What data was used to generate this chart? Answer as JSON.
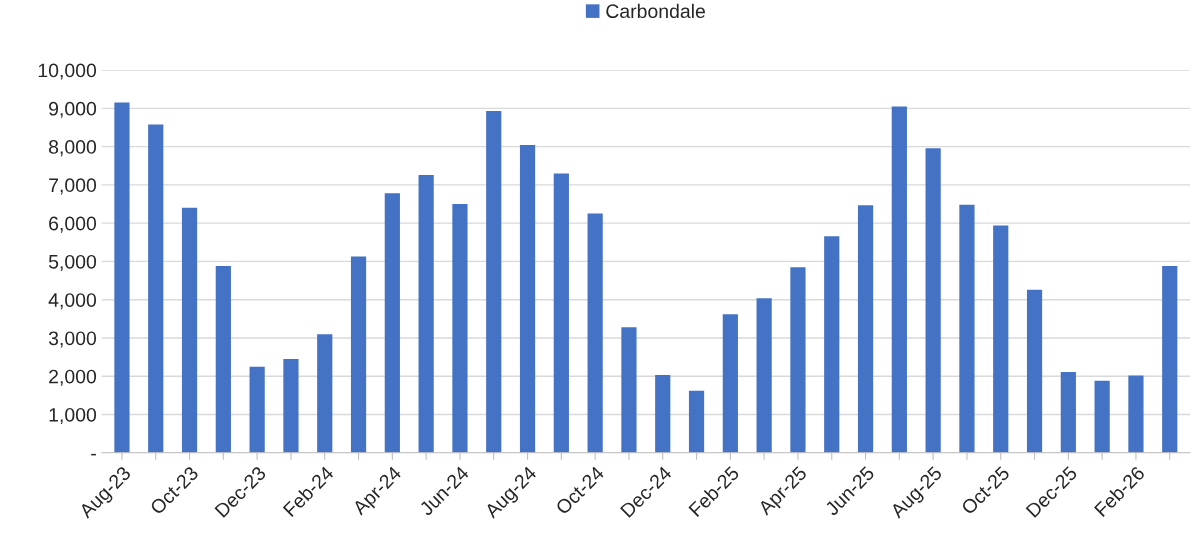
{
  "chart_data": {
    "type": "bar",
    "categories": [
      "Aug-23",
      null,
      "Oct-23",
      null,
      "Dec-23",
      null,
      "Feb-24",
      null,
      "Apr-24",
      null,
      "Jun-24",
      null,
      "Aug-24",
      null,
      "Oct-24",
      null,
      "Dec-24",
      null,
      "Feb-25",
      null,
      "Apr-25",
      null,
      "Jun-25",
      null,
      "Aug-25",
      null,
      "Oct-25",
      null,
      "Dec-25",
      null,
      "Feb-26",
      null
    ],
    "series": [
      {
        "name": "Carbondale",
        "color": "#4472c4",
        "values": [
          9150,
          8580,
          6400,
          4880,
          2250,
          2450,
          3100,
          5130,
          6780,
          7260,
          6500,
          8930,
          8040,
          7300,
          6250,
          3280,
          2030,
          1620,
          3620,
          4040,
          4850,
          5660,
          6470,
          9050,
          7960,
          6480,
          5940,
          4260,
          2110,
          1880,
          2020,
          4880
        ]
      }
    ],
    "ylim": [
      0,
      10000
    ],
    "yticks": [
      {
        "value": 0,
        "label": "-"
      },
      {
        "value": 1000,
        "label": "1,000"
      },
      {
        "value": 2000,
        "label": "2,000"
      },
      {
        "value": 3000,
        "label": "3,000"
      },
      {
        "value": 4000,
        "label": "4,000"
      },
      {
        "value": 5000,
        "label": "5,000"
      },
      {
        "value": 6000,
        "label": "6,000"
      },
      {
        "value": 7000,
        "label": "7,000"
      },
      {
        "value": 8000,
        "label": "8,000"
      },
      {
        "value": 9000,
        "label": "9,000"
      },
      {
        "value": 10000,
        "label": "10,000"
      }
    ],
    "grid": "y",
    "legend": "top"
  }
}
